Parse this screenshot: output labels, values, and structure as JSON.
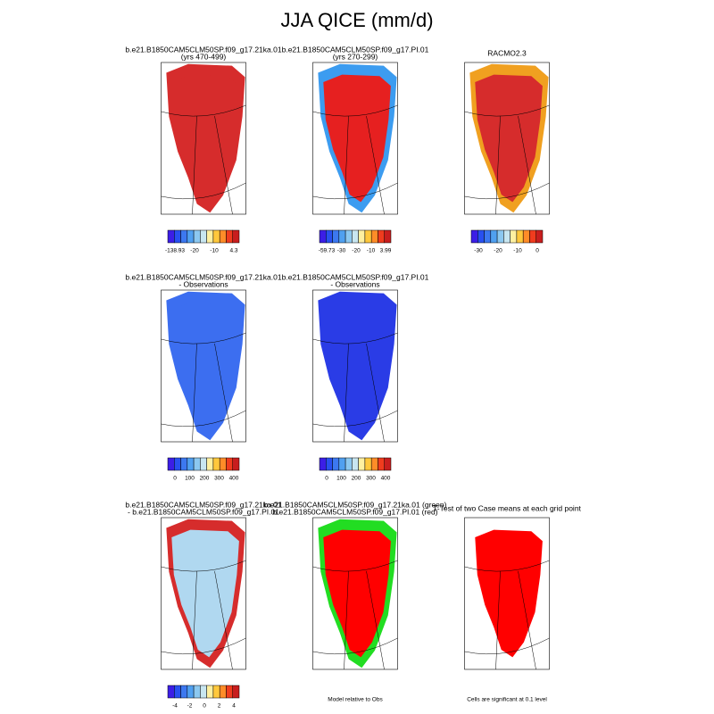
{
  "header": {
    "title": "JJA QICE (mm/d)"
  },
  "panels": [
    {
      "title": [
        "b.e21.B1850CAM5CLM50SP.f09_g17.21ka.01",
        "(yrs 470-499)"
      ],
      "colorbar": [
        "-138.93",
        "-20",
        "-10",
        "4.3"
      ]
    },
    {
      "title": [
        "b.e21.B1850CAM5CLM50SP.f09_g17.PI.01",
        "(yrs 270-299)"
      ],
      "colorbar": [
        "-59.73",
        "-30",
        "-20",
        "-10",
        "3.99"
      ]
    },
    {
      "title": [
        "RACMO2.3"
      ],
      "colorbar": [
        "-30",
        "-20",
        "-10",
        "0"
      ]
    },
    {
      "title": [
        "b.e21.B1850CAM5CLM50SP.f09_g17.21ka.01",
        "- Observations"
      ],
      "colorbar": [
        "0",
        "100",
        "200",
        "300",
        "400"
      ]
    },
    {
      "title": [
        "b.e21.B1850CAM5CLM50SP.f09_g17.PI.01",
        "- Observations"
      ],
      "colorbar": [
        "0",
        "100",
        "200",
        "300",
        "400"
      ]
    },
    {
      "title": [
        "b.e21.B1850CAM5CLM50SP.f09_g17.21ka.01",
        "- b.e21.B1850CAM5CLM50SP.f09_g17.PI.01"
      ],
      "colorbar": [
        "-4",
        "-2",
        "0",
        "2",
        "4"
      ]
    },
    {
      "title": [
        "b.e21.B1850CAM5CLM50SP.f09_g17.21ka.01 (green)",
        "b.e21.B1850CAM5CLM50SP.f09_g17.PI.01 (red)"
      ],
      "caption": "Model relative to Obs"
    },
    {
      "title": [
        "T-Test of two Case means at each grid point"
      ],
      "caption": "Cells are significant at 0.1 level"
    }
  ]
}
